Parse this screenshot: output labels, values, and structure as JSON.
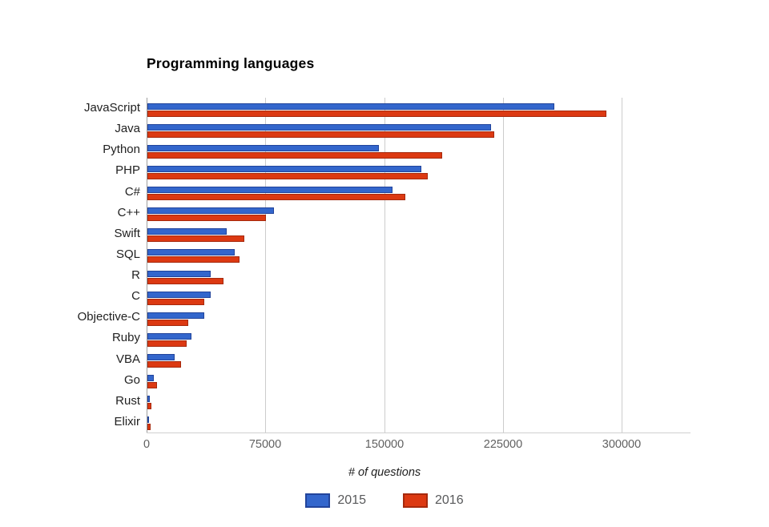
{
  "page": {
    "background": "#ffffff"
  },
  "chart_data": {
    "type": "bar",
    "orientation": "horizontal",
    "title": "Programming languages",
    "xlabel": "# of questions",
    "grid": true,
    "legend_position": "bottom",
    "xlim": [
      0,
      343000
    ],
    "x_ticks": [
      0,
      75000,
      150000,
      225000,
      300000
    ],
    "x_tick_labels": [
      "0",
      "75000",
      "150000",
      "225000",
      "300000"
    ],
    "categories": [
      "JavaScript",
      "Java",
      "Python",
      "PHP",
      "C#",
      "C++",
      "Swift",
      "SQL",
      "R",
      "C",
      "Objective-C",
      "Ruby",
      "VBA",
      "Go",
      "Rust",
      "Elixir"
    ],
    "series": [
      {
        "name": "2015",
        "color": "#3366cc",
        "border_color": "#22449b",
        "values": [
          257000,
          217000,
          146000,
          173000,
          155000,
          80000,
          50000,
          55000,
          40000,
          40000,
          36000,
          28000,
          17000,
          4000,
          1500,
          1000
        ]
      },
      {
        "name": "2016",
        "color": "#dc3912",
        "border_color": "#a6290d",
        "values": [
          290000,
          219000,
          186000,
          177000,
          163000,
          75000,
          61000,
          58000,
          48000,
          36000,
          26000,
          25000,
          21000,
          6000,
          2300,
          2000
        ]
      }
    ]
  }
}
